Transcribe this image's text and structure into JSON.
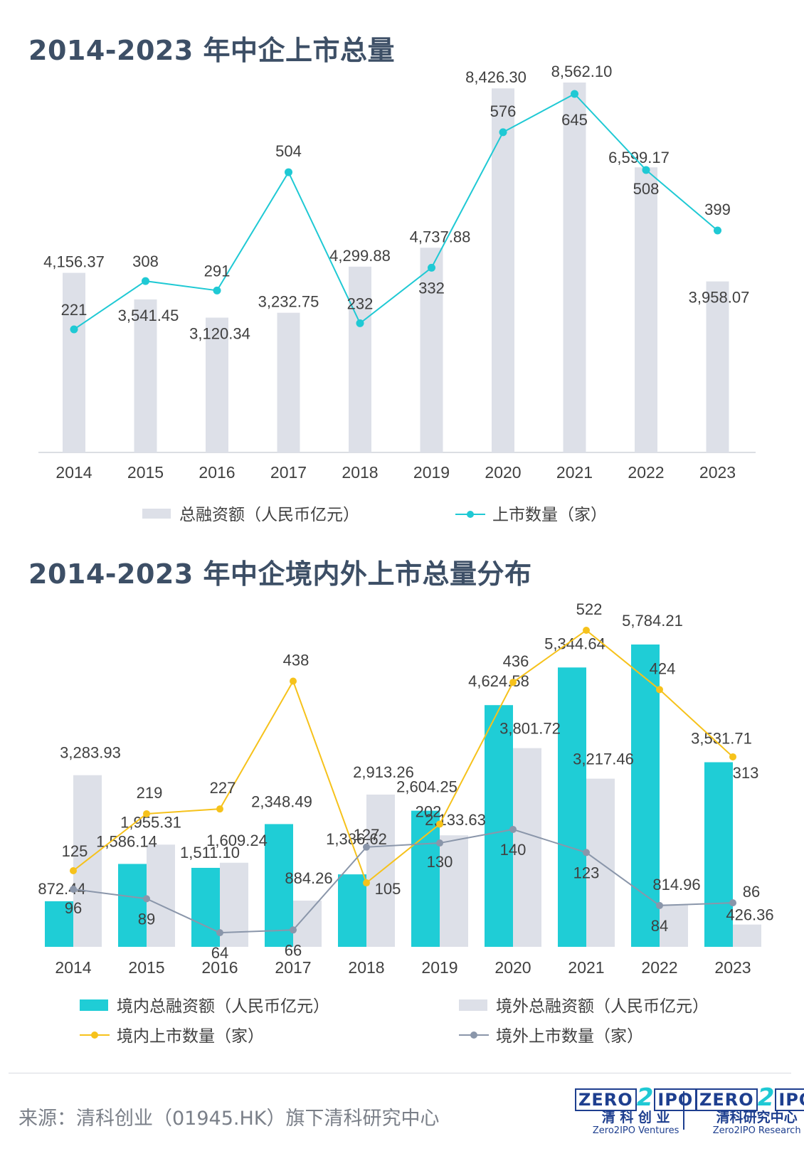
{
  "page": {
    "title1": "2014-2023 年中企上市总量",
    "title2": "2014-2023 年中企境内外上市总量分布",
    "source": "来源：清科创业（01945.HK）旗下清科研究中心",
    "logo1": {
      "zero": "ZERO",
      "two": "2",
      "ipo": "IPO",
      "cn": "清 科 创 业",
      "en": "Zero2IPO Ventures"
    },
    "logo2": {
      "zero": "ZERO",
      "two": "2",
      "ipo": "IPO",
      "cn": "清科研究中心",
      "en": "Zero2IPO Research"
    }
  },
  "chart_data": [
    {
      "type": "bar",
      "title": "2014-2023 年中企上市总量",
      "categories": [
        "2014",
        "2015",
        "2016",
        "2017",
        "2018",
        "2019",
        "2020",
        "2021",
        "2022",
        "2023"
      ],
      "series": [
        {
          "name": "总融资额（人民币亿元）",
          "kind": "bar",
          "color": "#dde0e8",
          "values": [
            4156.37,
            3541.45,
            3120.34,
            3232.75,
            4299.88,
            4737.88,
            8426.3,
            8562.1,
            6599.17,
            3958.07
          ],
          "labels": [
            "4,156.37",
            "3,541.45",
            "3,120.34",
            "3,232.75",
            "4,299.88",
            "4,737.88",
            "8,426.30",
            "8,562.10",
            "6,599.17",
            "3,958.07"
          ]
        },
        {
          "name": "上市数量（家）",
          "kind": "line",
          "color": "#1fc9d4",
          "values": [
            221,
            308,
            291,
            504,
            232,
            332,
            576,
            645,
            508,
            399
          ],
          "labels": [
            "221",
            "308",
            "291",
            "504",
            "232",
            "332",
            "576",
            "645",
            "508",
            "399"
          ]
        }
      ],
      "legend_position": "bottom",
      "grid": false
    },
    {
      "type": "bar",
      "title": "2014-2023 年中企境内外上市总量分布",
      "categories": [
        "2014",
        "2015",
        "2016",
        "2017",
        "2018",
        "2019",
        "2020",
        "2021",
        "2022",
        "2023"
      ],
      "series": [
        {
          "name": "境内总融资额（人民币亿元）",
          "kind": "bar",
          "color": "#1fcdd6",
          "values": [
            872.44,
            1586.14,
            1511.1,
            2348.49,
            1386.62,
            2604.25,
            4624.58,
            5344.64,
            5784.21,
            3531.71
          ],
          "labels": [
            "872.44",
            "1,586.14",
            "1,511.10",
            "2,348.49",
            "1,386.62",
            "2,604.25",
            "4,624.58",
            "5,344.64",
            "5,784.21",
            "3,531.71"
          ]
        },
        {
          "name": "境外总融资额（人民币亿元）",
          "kind": "bar",
          "color": "#dde0e8",
          "values": [
            3283.93,
            1955.31,
            1609.24,
            884.26,
            2913.26,
            2133.63,
            3801.72,
            3217.46,
            814.96,
            426.36
          ],
          "labels": [
            "3,283.93",
            "1,955.31",
            "1,609.24",
            "884.26",
            "2,913.26",
            "2,133.63",
            "3,801.72",
            "3,217.46",
            "814.96",
            "426.36"
          ]
        },
        {
          "name": "境内上市数量（家）",
          "kind": "line",
          "color": "#f6c21b",
          "values": [
            125,
            219,
            227,
            438,
            105,
            202,
            436,
            522,
            424,
            313
          ],
          "labels": [
            "125",
            "219",
            "227",
            "438",
            "105",
            "202",
            "436",
            "522",
            "424",
            "313"
          ]
        },
        {
          "name": "境外上市数量（家）",
          "kind": "line",
          "color": "#8a96aa",
          "values": [
            96,
            89,
            64,
            66,
            127,
            130,
            140,
            123,
            84,
            86
          ],
          "labels": [
            "96",
            "89",
            "64",
            "66",
            "127",
            "130",
            "140",
            "123",
            "84",
            "86"
          ]
        }
      ],
      "legend_position": "bottom",
      "grid": false
    }
  ]
}
